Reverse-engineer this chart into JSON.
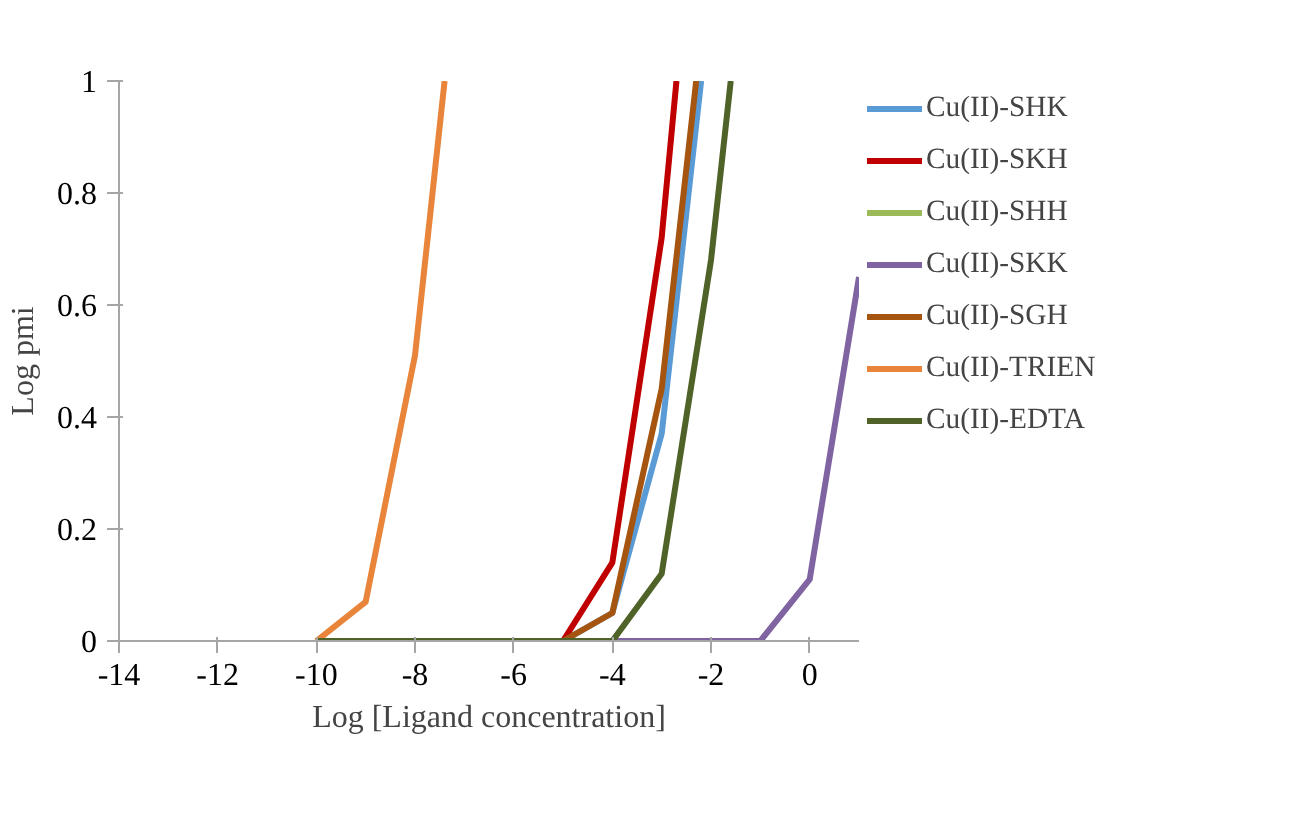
{
  "chart_data": {
    "type": "line",
    "xlabel": "Log [Ligand concentration]",
    "ylabel": "Log pmi",
    "xlim": [
      -14,
      1
    ],
    "xticks": [
      -14,
      -12,
      -10,
      -8,
      -6,
      -4,
      -2,
      0
    ],
    "ylim": [
      0,
      1
    ],
    "yticks": [
      0,
      0.2,
      0.4,
      0.6,
      0.8,
      1
    ],
    "grid": false,
    "legend": "right",
    "marker": "none",
    "line_style": "solid",
    "series": [
      {
        "name": "Cu(II)-SHK",
        "color": "#5b9bd5",
        "x": [
          -5,
          -4,
          -3,
          -2.2
        ],
        "values": [
          0,
          0.05,
          0.37,
          1
        ]
      },
      {
        "name": "Cu(II)-SKH",
        "color": "#c00000",
        "x": [
          -5,
          -4,
          -3,
          -2.7
        ],
        "values": [
          0,
          0.14,
          0.72,
          1
        ]
      },
      {
        "name": "Cu(II)-SHH",
        "color": "#9bbb59"
      },
      {
        "name": "Cu(II)-SKK",
        "color": "#8064a2",
        "x": [
          -4,
          -1,
          0,
          1
        ],
        "values": [
          0,
          0,
          0.11,
          0.65
        ]
      },
      {
        "name": "Cu(II)-SGH",
        "color": "#a5550f",
        "x": [
          -5,
          -4,
          -3,
          -2.3
        ],
        "values": [
          0,
          0.05,
          0.45,
          1
        ]
      },
      {
        "name": "Cu(II)-TRIEN",
        "color": "#e8853a",
        "x": [
          -10,
          -9,
          -8,
          -7.4
        ],
        "values": [
          0,
          0.07,
          0.51,
          1
        ]
      },
      {
        "name": "Cu(II)-EDTA",
        "color": "#4f6228",
        "x": [
          -10,
          -4,
          -3,
          -2,
          -1.6
        ],
        "values": [
          0,
          0,
          0.12,
          0.68,
          1
        ]
      }
    ]
  }
}
